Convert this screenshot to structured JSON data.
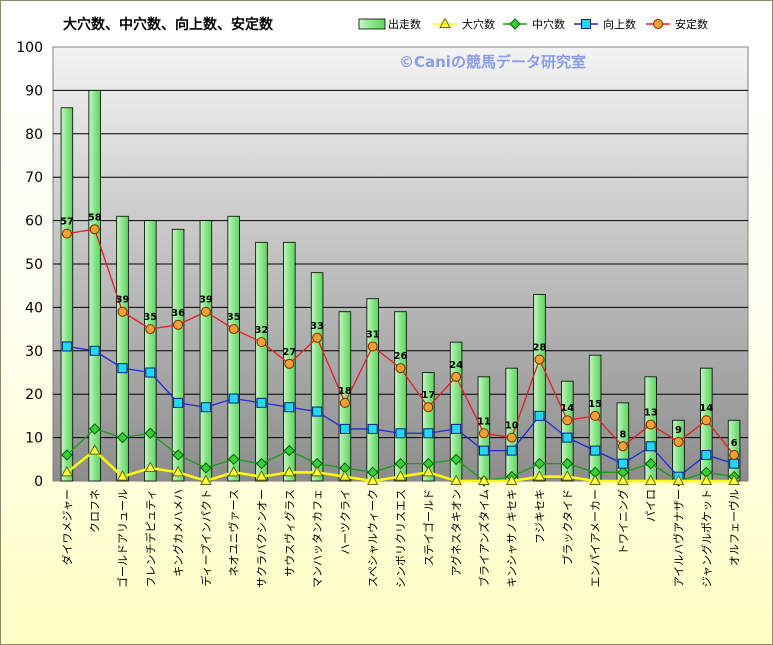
{
  "chart_data": {
    "type": "bar",
    "title": "大穴数、中穴数、向上数、安定数",
    "watermark": "©Caniの競馬データ研究室",
    "ylim": [
      0,
      100
    ],
    "yticks": [
      "0",
      "10",
      "20",
      "30",
      "40",
      "50",
      "60",
      "70",
      "80",
      "90",
      "100"
    ],
    "grid": true,
    "legend_position": "top-right",
    "categories": [
      "ダイワメジャー",
      "クロフネ",
      "ゴールドアリュール",
      "フレンチデピュティ",
      "キングカメハメハ",
      "ディープインパクト",
      "ネオユニヴァース",
      "サクラバクシンオー",
      "サウスヴィグラス",
      "マンハッタンカフェ",
      "ハーツクライ",
      "スペシャルウィーク",
      "シンボリクリスエス",
      "ステイゴールド",
      "アグネスタキオン",
      "ブライアンズタイム",
      "キンシャサノキセキ",
      "フジキセキ",
      "ブラックタイド",
      "エンパイアメーカー",
      "トワイニング",
      "パイロ",
      "アイルハヴアナザー",
      "ジャングルポケット",
      "オルフェーヴル"
    ],
    "series": [
      {
        "name": "出走数",
        "type": "bar",
        "color": "#7ee07e",
        "values": [
          86,
          90,
          61,
          60,
          58,
          60,
          61,
          55,
          55,
          48,
          39,
          42,
          39,
          25,
          32,
          24,
          26,
          43,
          23,
          29,
          18,
          24,
          14,
          26,
          14
        ]
      },
      {
        "name": "大穴数",
        "type": "line",
        "marker": "triangle",
        "color": "#ffff00",
        "values": [
          2,
          7,
          1,
          3,
          2,
          0,
          2,
          1,
          2,
          2,
          1,
          0,
          1,
          2,
          0,
          0,
          0,
          1,
          1,
          0,
          0,
          0,
          0,
          0,
          0
        ]
      },
      {
        "name": "中穴数",
        "type": "line",
        "marker": "diamond",
        "color": "#1a9a1a",
        "values": [
          6,
          12,
          10,
          11,
          6,
          3,
          5,
          4,
          7,
          4,
          3,
          2,
          4,
          4,
          5,
          0,
          1,
          4,
          4,
          2,
          2,
          4,
          0,
          2,
          1
        ]
      },
      {
        "name": "向上数",
        "type": "line",
        "marker": "square",
        "color": "#1c2bd8",
        "values": [
          31,
          30,
          26,
          25,
          18,
          17,
          19,
          18,
          17,
          16,
          12,
          12,
          11,
          11,
          12,
          7,
          7,
          15,
          10,
          7,
          4,
          8,
          1,
          6,
          4
        ]
      },
      {
        "name": "安定数",
        "type": "line",
        "marker": "circle",
        "color": "#e02020",
        "values": [
          57,
          58,
          39,
          35,
          36,
          39,
          35,
          32,
          27,
          33,
          18,
          31,
          26,
          17,
          24,
          11,
          10,
          28,
          14,
          15,
          8,
          13,
          9,
          14,
          6
        ]
      }
    ],
    "data_labels": [
      "57",
      "58",
      "39",
      "35",
      "36",
      "39",
      "35",
      "32",
      "27",
      "33",
      "18",
      "31",
      "26",
      "17",
      "24",
      "11",
      "10",
      "28",
      "14",
      "15",
      "8",
      "13",
      "9",
      "14",
      "6"
    ]
  }
}
